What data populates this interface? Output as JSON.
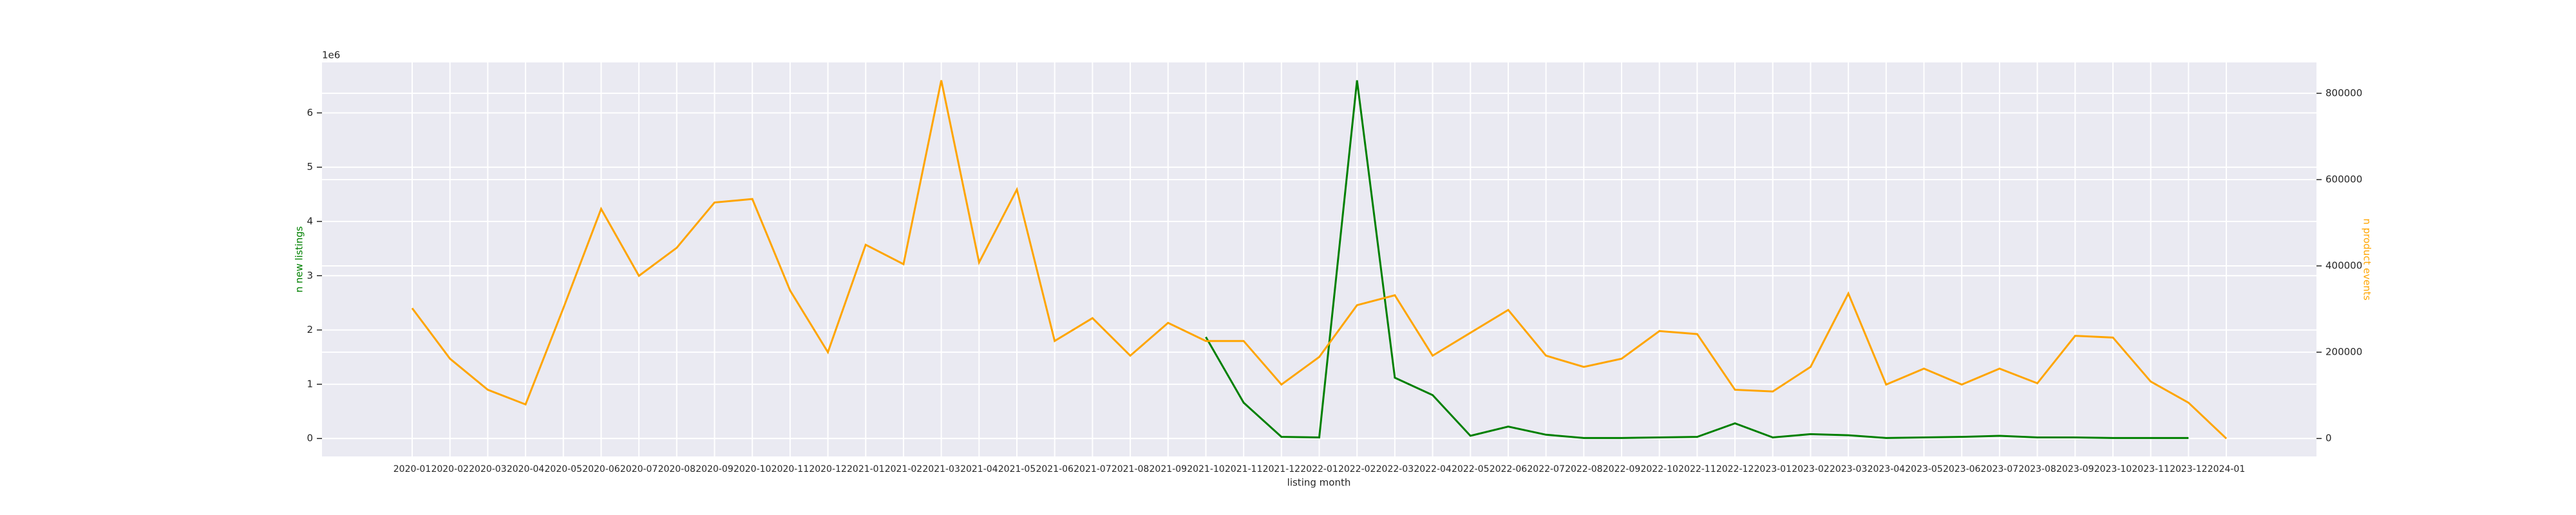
{
  "chart_data": {
    "type": "line",
    "x_label": "listing month",
    "y_label": "n new listings",
    "y2_label": "n product events",
    "y_offset_label": "1e6",
    "categories": [
      "2020-01",
      "2020-02",
      "2020-03",
      "2020-04",
      "2020-05",
      "2020-06",
      "2020-07",
      "2020-08",
      "2020-09",
      "2020-10",
      "2020-11",
      "2020-12",
      "2021-01",
      "2021-02",
      "2021-03",
      "2021-04",
      "2021-05",
      "2021-06",
      "2021-07",
      "2021-08",
      "2021-09",
      "2021-10",
      "2021-11",
      "2021-12",
      "2022-01",
      "2022-02",
      "2022-03",
      "2022-04",
      "2022-05",
      "2022-06",
      "2022-07",
      "2022-08",
      "2022-09",
      "2022-10",
      "2022-11",
      "2022-12",
      "2023-01",
      "2023-02",
      "2023-03",
      "2023-04",
      "2023-05",
      "2023-06",
      "2023-07",
      "2023-08",
      "2023-09",
      "2023-10",
      "2023-11",
      "2023-12",
      "2024-01"
    ],
    "series": [
      {
        "name": "n new listings",
        "color": "#008000",
        "axis": "y",
        "values": [
          null,
          null,
          null,
          null,
          null,
          null,
          null,
          null,
          null,
          null,
          null,
          null,
          null,
          null,
          null,
          null,
          null,
          null,
          null,
          null,
          null,
          1870000,
          660000,
          30000,
          20000,
          6600000,
          1120000,
          800000,
          50000,
          220000,
          70000,
          10000,
          10000,
          20000,
          30000,
          280000,
          20000,
          80000,
          60000,
          10000,
          20000,
          30000,
          50000,
          20000,
          20000,
          10000,
          10000,
          10000,
          null
        ]
      },
      {
        "name": "n product events",
        "color": "#ffa500",
        "axis": "y2",
        "values": [
          302000,
          185000,
          113000,
          79000,
          302000,
          532000,
          377000,
          442000,
          547000,
          555000,
          343000,
          200000,
          449000,
          404000,
          830000,
          408000,
          577000,
          226000,
          279000,
          192000,
          268000,
          226000,
          226000,
          125000,
          189000,
          309000,
          332000,
          192000,
          245000,
          298000,
          192000,
          166000,
          185000,
          249000,
          242000,
          113000,
          109000,
          166000,
          336000,
          125000,
          162000,
          125000,
          162000,
          128000,
          238000,
          234000,
          132000,
          83000,
          0
        ]
      }
    ],
    "ylim": [
      -330000,
      6930000
    ],
    "yticks": [
      0,
      {
        "value": 1000000,
        "label": "1"
      },
      {
        "value": 2000000,
        "label": "2"
      },
      {
        "value": 3000000,
        "label": "3"
      },
      {
        "value": 4000000,
        "label": "4"
      },
      {
        "value": 5000000,
        "label": "5"
      },
      {
        "value": 6000000,
        "label": "6"
      }
    ],
    "y2lim": [
      -41500,
      871500
    ],
    "y2ticks": [
      0,
      200000,
      400000,
      600000,
      800000
    ],
    "grid": true
  }
}
